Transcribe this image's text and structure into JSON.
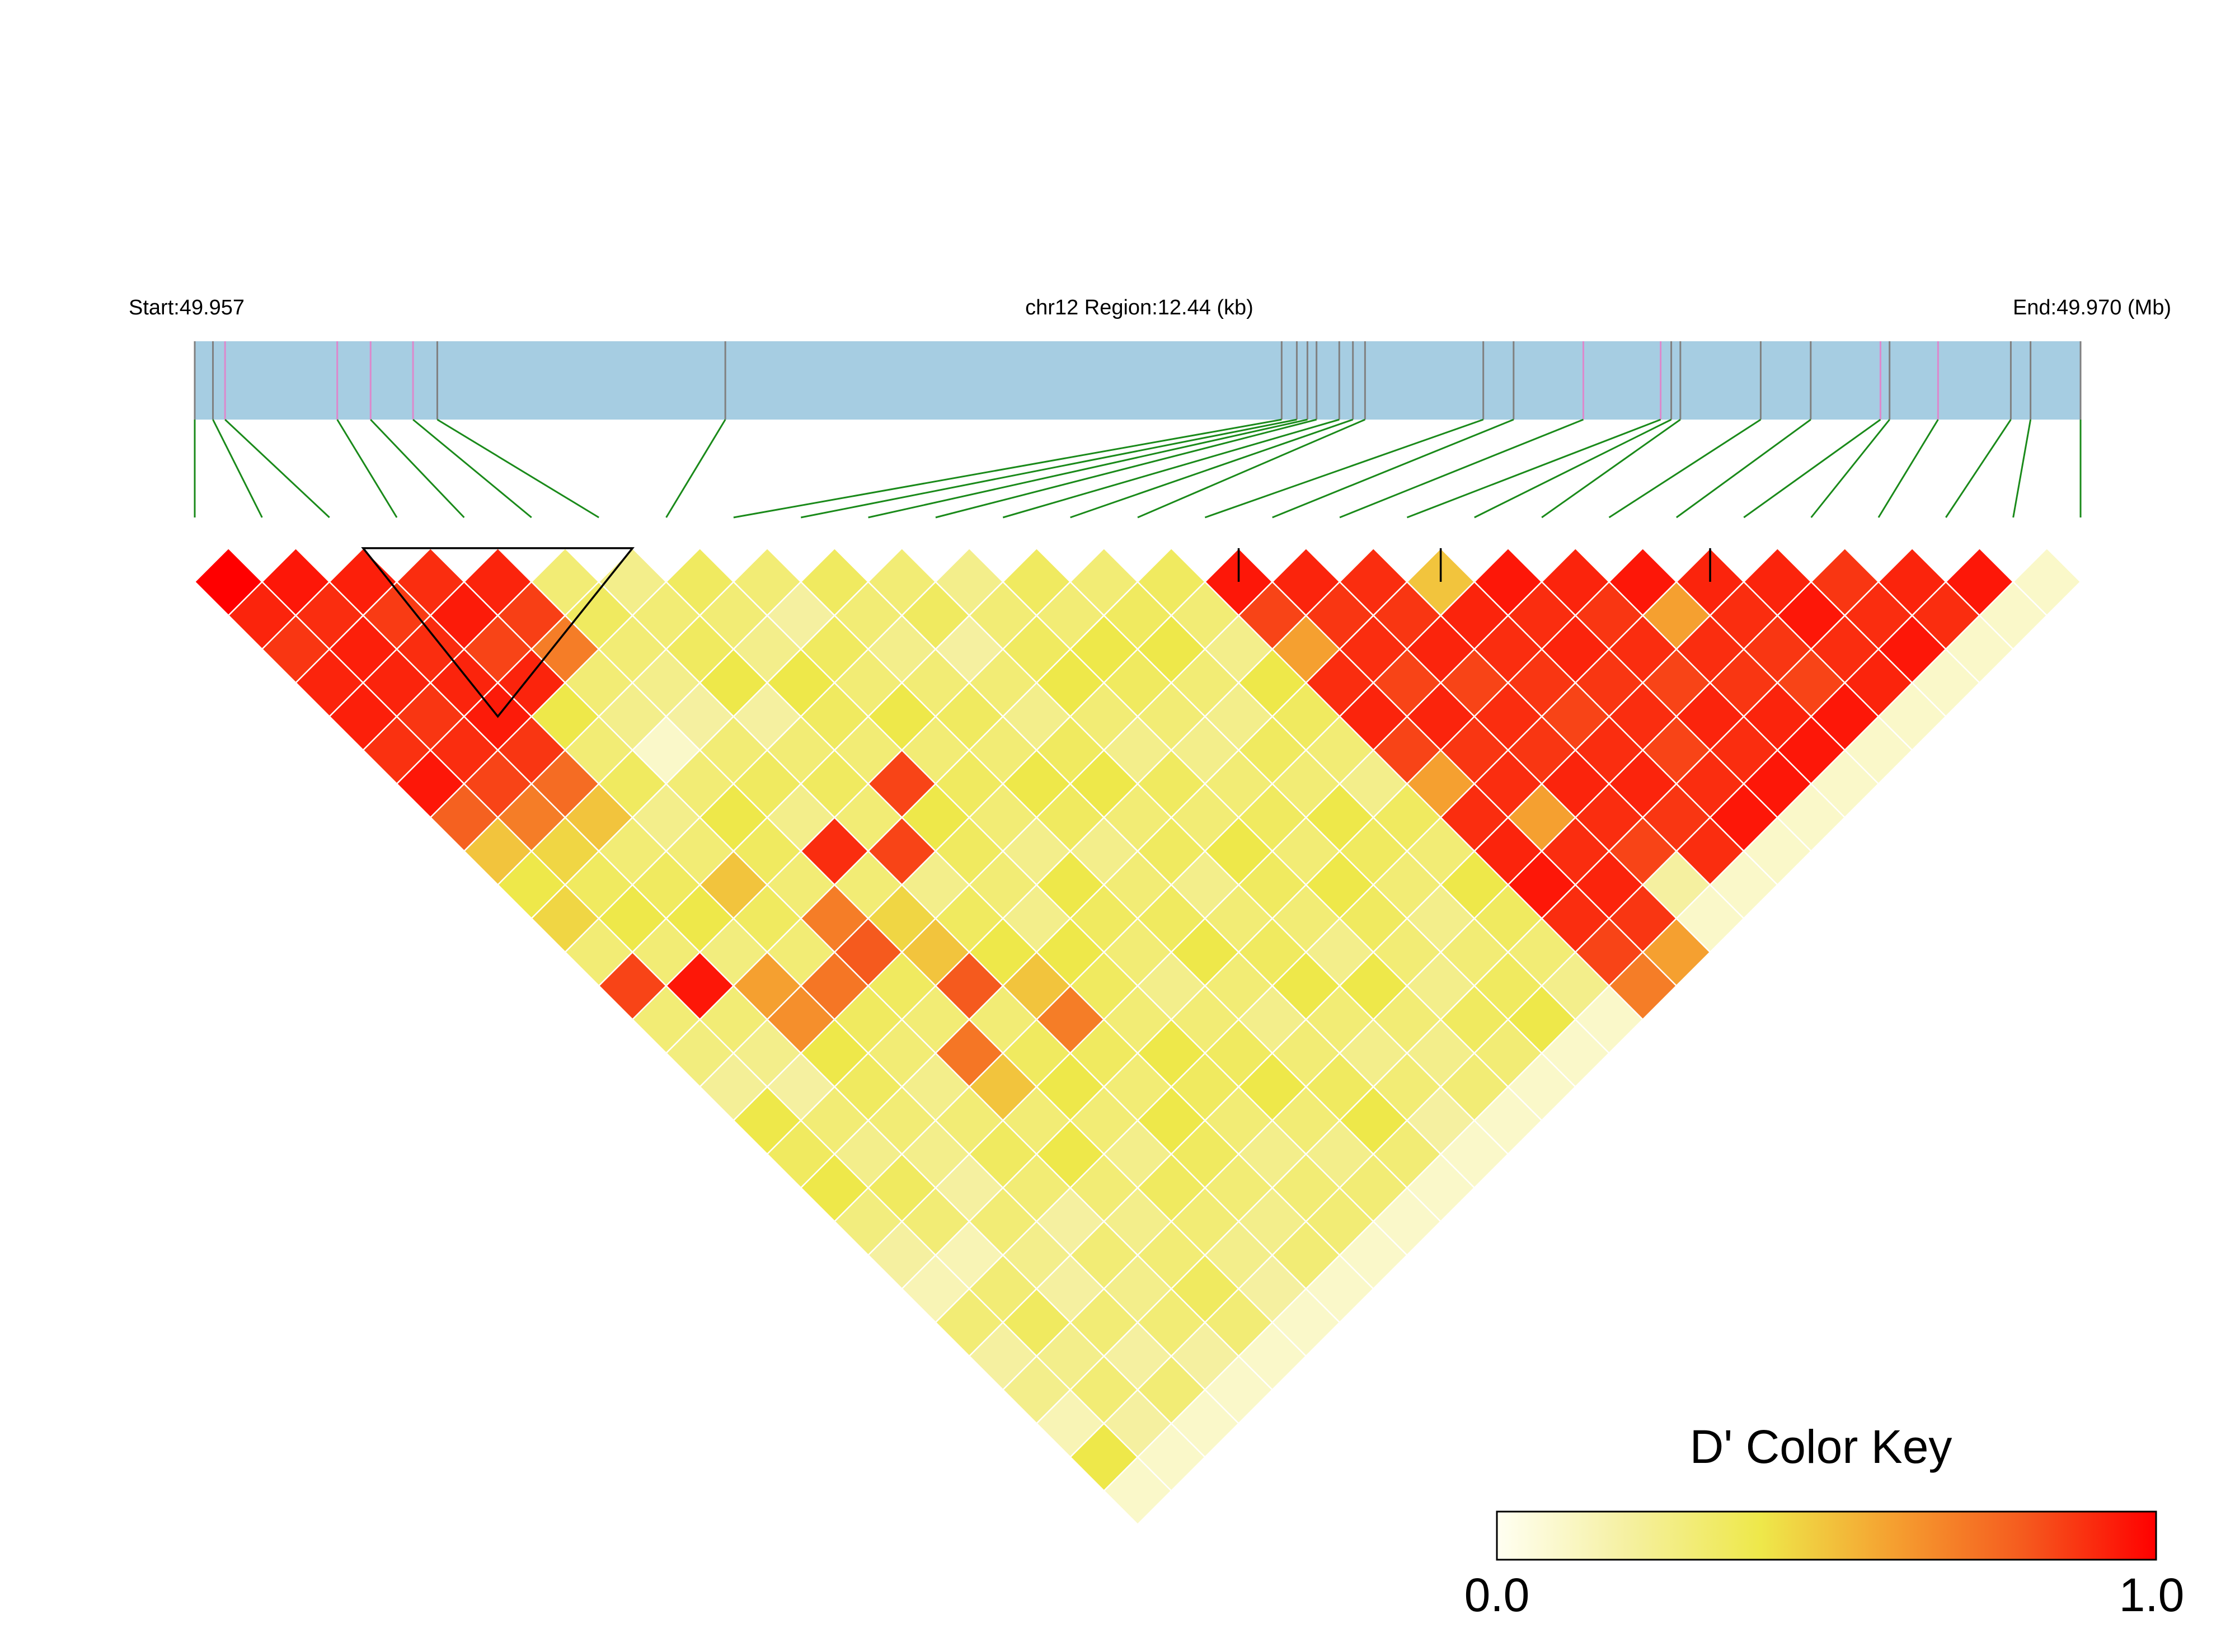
{
  "chart_data": {
    "type": "heatmap",
    "title": "",
    "labels": {
      "start": "Start:49.957",
      "region": "chr12 Region:12.44 (kb)",
      "end": "End:49.970 (Mb)"
    },
    "snp_count": 29,
    "snp_positions_kb": [
      0.0,
      0.12,
      0.2,
      0.94,
      1.16,
      1.44,
      1.6,
      3.5,
      7.17,
      7.27,
      7.34,
      7.4,
      7.55,
      7.64,
      7.72,
      8.5,
      8.7,
      9.16,
      9.67,
      9.74,
      9.8,
      10.33,
      10.66,
      11.12,
      11.18,
      11.5,
      11.98,
      12.11,
      12.44
    ],
    "dprime_matrix": [
      [
        1.0,
        1.0,
        0.92,
        0.88,
        0.92,
        0.93,
        0.89,
        0.95,
        0.78,
        0.5,
        0.4,
        0.45,
        0.3,
        0.85,
        0.3,
        0.28,
        0.22,
        0.4,
        0.35,
        0.4,
        0.28,
        0.2,
        0.15,
        0.3,
        0.2,
        0.25,
        0.15,
        0.4,
        0.1
      ],
      [
        1.0,
        1.0,
        0.95,
        0.9,
        0.93,
        0.92,
        0.88,
        0.9,
        0.85,
        0.7,
        0.45,
        0.35,
        0.4,
        0.3,
        0.95,
        0.3,
        0.25,
        0.2,
        0.3,
        0.25,
        0.35,
        0.3,
        0.15,
        0.3,
        0.35,
        0.25,
        0.3,
        0.2,
        0.1
      ],
      [
        0.92,
        0.95,
        1.0,
        0.93,
        0.87,
        0.9,
        0.92,
        0.94,
        0.88,
        0.75,
        0.5,
        0.3,
        0.35,
        0.4,
        0.28,
        0.6,
        0.65,
        0.4,
        0.35,
        0.3,
        0.25,
        0.2,
        0.3,
        0.25,
        0.2,
        0.3,
        0.2,
        0.3,
        0.1
      ],
      [
        0.88,
        0.9,
        0.93,
        1.0,
        0.9,
        0.94,
        0.85,
        0.92,
        0.4,
        0.3,
        0.35,
        0.25,
        0.3,
        0.5,
        0.35,
        0.3,
        0.72,
        0.35,
        0.3,
        0.25,
        0.3,
        0.35,
        0.3,
        0.2,
        0.3,
        0.25,
        0.3,
        0.2,
        0.1
      ],
      [
        0.92,
        0.93,
        0.87,
        0.9,
        1.0,
        0.92,
        0.86,
        0.7,
        0.3,
        0.25,
        0.1,
        0.3,
        0.4,
        0.35,
        0.3,
        0.7,
        0.8,
        0.35,
        0.3,
        0.72,
        0.5,
        0.3,
        0.4,
        0.3,
        0.25,
        0.3,
        0.35,
        0.3,
        0.1
      ],
      [
        0.93,
        0.92,
        0.9,
        0.94,
        0.92,
        1.0,
        0.3,
        0.35,
        0.3,
        0.25,
        0.2,
        0.3,
        0.35,
        0.25,
        0.9,
        0.3,
        0.45,
        0.5,
        0.8,
        0.3,
        0.35,
        0.4,
        0.3,
        0.25,
        0.35,
        0.3,
        0.25,
        0.2,
        0.1
      ],
      [
        0.89,
        0.88,
        0.92,
        0.85,
        0.86,
        0.3,
        1.0,
        0.25,
        0.3,
        0.35,
        0.4,
        0.2,
        0.3,
        0.35,
        0.3,
        0.85,
        0.25,
        0.35,
        0.4,
        0.5,
        0.7,
        0.35,
        0.3,
        0.4,
        0.35,
        0.3,
        0.25,
        0.3,
        0.1
      ],
      [
        0.95,
        0.9,
        0.94,
        0.92,
        0.7,
        0.35,
        0.25,
        1.0,
        0.35,
        0.3,
        0.25,
        0.4,
        0.35,
        0.3,
        0.85,
        0.4,
        0.35,
        0.3,
        0.25,
        0.4,
        0.35,
        0.3,
        0.4,
        0.35,
        0.3,
        0.25,
        0.3,
        0.3,
        0.1
      ],
      [
        0.78,
        0.85,
        0.88,
        0.4,
        0.3,
        0.3,
        0.3,
        0.35,
        1.0,
        0.3,
        0.2,
        0.35,
        0.3,
        0.4,
        0.3,
        0.35,
        0.3,
        0.25,
        0.4,
        0.35,
        0.3,
        0.25,
        0.3,
        0.35,
        0.4,
        0.3,
        0.25,
        0.3,
        0.1
      ],
      [
        0.5,
        0.7,
        0.75,
        0.3,
        0.25,
        0.25,
        0.35,
        0.3,
        0.3,
        1.0,
        0.35,
        0.3,
        0.25,
        0.3,
        0.35,
        0.3,
        0.4,
        0.35,
        0.25,
        0.3,
        0.35,
        0.4,
        0.3,
        0.25,
        0.3,
        0.35,
        0.4,
        0.3,
        0.1
      ],
      [
        0.4,
        0.45,
        0.5,
        0.35,
        0.1,
        0.2,
        0.4,
        0.25,
        0.2,
        0.35,
        1.0,
        0.3,
        0.35,
        0.2,
        0.3,
        0.25,
        0.35,
        0.4,
        0.3,
        0.35,
        0.25,
        0.3,
        0.35,
        0.4,
        0.3,
        0.25,
        0.3,
        0.2,
        0.1
      ],
      [
        0.45,
        0.35,
        0.3,
        0.25,
        0.3,
        0.3,
        0.2,
        0.4,
        0.35,
        0.3,
        0.3,
        1.0,
        0.25,
        0.3,
        0.35,
        0.4,
        0.3,
        0.25,
        0.35,
        0.3,
        0.4,
        0.35,
        0.3,
        0.25,
        0.4,
        0.3,
        0.25,
        0.3,
        0.1
      ],
      [
        0.3,
        0.4,
        0.35,
        0.3,
        0.4,
        0.35,
        0.3,
        0.35,
        0.3,
        0.25,
        0.35,
        0.25,
        1.0,
        0.35,
        0.3,
        0.4,
        0.35,
        0.3,
        0.25,
        0.3,
        0.35,
        0.3,
        0.4,
        0.35,
        0.3,
        0.25,
        0.35,
        0.3,
        0.1
      ],
      [
        0.85,
        0.3,
        0.4,
        0.5,
        0.35,
        0.25,
        0.35,
        0.3,
        0.4,
        0.3,
        0.2,
        0.3,
        0.35,
        1.0,
        0.3,
        0.35,
        0.4,
        0.3,
        0.25,
        0.35,
        0.3,
        0.4,
        0.35,
        0.3,
        0.25,
        0.3,
        0.35,
        0.4,
        0.1
      ],
      [
        0.3,
        0.95,
        0.28,
        0.35,
        0.3,
        0.9,
        0.3,
        0.85,
        0.3,
        0.35,
        0.3,
        0.35,
        0.3,
        0.3,
        1.0,
        0.35,
        0.3,
        0.25,
        0.4,
        0.35,
        0.3,
        0.25,
        0.35,
        0.3,
        0.4,
        0.35,
        0.3,
        0.25,
        0.1
      ],
      [
        0.28,
        0.3,
        0.6,
        0.3,
        0.7,
        0.3,
        0.85,
        0.4,
        0.35,
        0.3,
        0.25,
        0.4,
        0.4,
        0.35,
        0.35,
        1.0,
        0.95,
        0.85,
        0.6,
        0.9,
        0.92,
        0.85,
        0.6,
        0.9,
        0.92,
        0.95,
        0.9,
        0.85,
        0.7
      ],
      [
        0.22,
        0.25,
        0.65,
        0.72,
        0.8,
        0.45,
        0.25,
        0.35,
        0.3,
        0.4,
        0.35,
        0.3,
        0.35,
        0.4,
        0.3,
        0.95,
        1.0,
        0.92,
        0.88,
        0.9,
        0.85,
        0.92,
        0.88,
        0.9,
        0.6,
        0.9,
        0.92,
        0.88,
        0.6
      ],
      [
        0.4,
        0.2,
        0.4,
        0.35,
        0.35,
        0.5,
        0.35,
        0.3,
        0.25,
        0.35,
        0.4,
        0.25,
        0.3,
        0.3,
        0.25,
        0.85,
        0.92,
        1.0,
        0.9,
        0.88,
        0.92,
        0.85,
        0.9,
        0.88,
        0.92,
        0.9,
        0.85,
        0.2,
        0.1
      ],
      [
        0.35,
        0.3,
        0.35,
        0.3,
        0.3,
        0.8,
        0.4,
        0.25,
        0.4,
        0.25,
        0.3,
        0.35,
        0.25,
        0.25,
        0.4,
        0.6,
        0.88,
        0.9,
        1.0,
        0.5,
        0.92,
        0.9,
        0.88,
        0.85,
        0.9,
        0.92,
        0.88,
        0.9,
        0.1
      ],
      [
        0.4,
        0.25,
        0.3,
        0.25,
        0.72,
        0.3,
        0.5,
        0.4,
        0.35,
        0.3,
        0.35,
        0.3,
        0.3,
        0.35,
        0.35,
        0.9,
        0.9,
        0.88,
        0.5,
        1.0,
        0.95,
        0.9,
        0.92,
        0.88,
        0.9,
        0.85,
        0.9,
        0.95,
        0.1
      ],
      [
        0.28,
        0.35,
        0.25,
        0.3,
        0.5,
        0.35,
        0.7,
        0.35,
        0.3,
        0.35,
        0.25,
        0.4,
        0.35,
        0.3,
        0.3,
        0.92,
        0.85,
        0.92,
        0.92,
        0.95,
        1.0,
        0.92,
        0.88,
        0.9,
        0.85,
        0.92,
        0.9,
        0.95,
        0.1
      ],
      [
        0.2,
        0.3,
        0.2,
        0.35,
        0.3,
        0.4,
        0.35,
        0.3,
        0.25,
        0.4,
        0.3,
        0.35,
        0.3,
        0.4,
        0.25,
        0.85,
        0.92,
        0.85,
        0.9,
        0.9,
        0.92,
        1.0,
        0.95,
        0.6,
        0.9,
        0.88,
        0.92,
        0.95,
        0.1
      ],
      [
        0.15,
        0.15,
        0.3,
        0.3,
        0.4,
        0.3,
        0.3,
        0.4,
        0.3,
        0.3,
        0.35,
        0.3,
        0.4,
        0.35,
        0.35,
        0.6,
        0.88,
        0.9,
        0.88,
        0.92,
        0.88,
        0.95,
        1.0,
        0.92,
        0.9,
        0.88,
        0.85,
        0.95,
        0.1
      ],
      [
        0.3,
        0.3,
        0.25,
        0.2,
        0.3,
        0.25,
        0.4,
        0.35,
        0.35,
        0.25,
        0.4,
        0.25,
        0.35,
        0.3,
        0.3,
        0.9,
        0.9,
        0.88,
        0.85,
        0.88,
        0.9,
        0.6,
        0.92,
        1.0,
        0.92,
        0.95,
        0.9,
        0.92,
        0.1
      ],
      [
        0.2,
        0.35,
        0.2,
        0.3,
        0.25,
        0.35,
        0.35,
        0.3,
        0.4,
        0.3,
        0.3,
        0.4,
        0.3,
        0.25,
        0.4,
        0.92,
        0.6,
        0.92,
        0.9,
        0.9,
        0.85,
        0.9,
        0.9,
        0.92,
        1.0,
        0.88,
        0.9,
        0.95,
        0.1
      ],
      [
        0.25,
        0.25,
        0.3,
        0.25,
        0.3,
        0.3,
        0.3,
        0.25,
        0.3,
        0.35,
        0.25,
        0.3,
        0.25,
        0.3,
        0.35,
        0.95,
        0.9,
        0.9,
        0.92,
        0.85,
        0.92,
        0.88,
        0.88,
        0.95,
        0.88,
        1.0,
        0.92,
        0.9,
        0.1
      ],
      [
        0.15,
        0.3,
        0.2,
        0.3,
        0.35,
        0.25,
        0.25,
        0.3,
        0.25,
        0.4,
        0.3,
        0.25,
        0.35,
        0.35,
        0.3,
        0.9,
        0.92,
        0.85,
        0.88,
        0.9,
        0.9,
        0.92,
        0.85,
        0.9,
        0.9,
        0.92,
        1.0,
        0.95,
        0.1
      ],
      [
        0.4,
        0.2,
        0.3,
        0.2,
        0.3,
        0.2,
        0.3,
        0.3,
        0.3,
        0.3,
        0.2,
        0.3,
        0.3,
        0.4,
        0.25,
        0.85,
        0.88,
        0.2,
        0.9,
        0.95,
        0.95,
        0.95,
        0.95,
        0.92,
        0.95,
        0.9,
        0.95,
        1.0,
        0.1
      ],
      [
        0.1,
        0.1,
        0.1,
        0.1,
        0.1,
        0.1,
        0.1,
        0.1,
        0.1,
        0.1,
        0.1,
        0.1,
        0.1,
        0.1,
        0.1,
        0.7,
        0.6,
        0.1,
        0.1,
        0.1,
        0.1,
        0.1,
        0.1,
        0.1,
        0.1,
        0.1,
        0.1,
        0.1,
        1.0
      ]
    ],
    "ld_blocks": [
      [
        2,
        7
      ],
      [
        15,
        16
      ],
      [
        18,
        19
      ],
      [
        22,
        23
      ]
    ],
    "colorscale": {
      "title": "D' Color Key",
      "min_label": "0.0",
      "max_label": "1.0",
      "min": 0.0,
      "max": 1.0,
      "stops": [
        "#fffff2",
        "#f5f0a0",
        "#eee84a",
        "#f5a030",
        "#f55a1e",
        "#ff0000"
      ]
    },
    "colors": {
      "track_fill": "#a6cde2",
      "track_snp_line_gray": "#808080",
      "track_snp_line_pink": "#dd88cc",
      "connector_line": "#1a8a1a",
      "cell_border": "#ffffff",
      "block_outline": "#000000"
    },
    "pink_snp_indices": [
      2,
      3,
      4,
      5,
      17,
      18,
      23,
      25
    ]
  }
}
